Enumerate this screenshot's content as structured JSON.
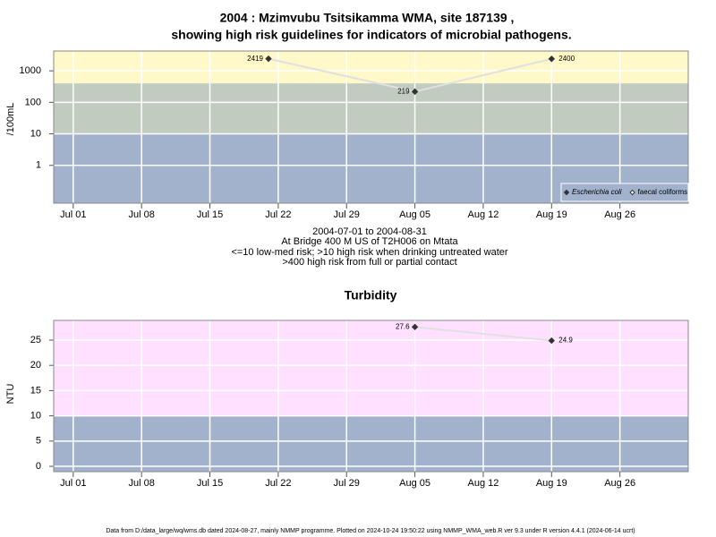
{
  "chart_data": [
    {
      "type": "line",
      "title": "2004 : Mzimvubu Tsitsikamma WMA, site 187139 ,",
      "subtitle": "showing high risk guidelines for indicators of microbial pathogens.",
      "ylabel": "/100mL",
      "log_scale": true,
      "ylim": [
        0.063,
        4260
      ],
      "yticks": [
        1,
        10,
        100,
        1000
      ],
      "xlim": [
        "2004-06-29",
        "2004-09-02"
      ],
      "xticks": [
        {
          "value": "2004-07-01",
          "label": "Jul 01"
        },
        {
          "value": "2004-07-08",
          "label": "Jul 08"
        },
        {
          "value": "2004-07-15",
          "label": "Jul 15"
        },
        {
          "value": "2004-07-22",
          "label": "Jul 22"
        },
        {
          "value": "2004-07-29",
          "label": "Jul 29"
        },
        {
          "value": "2004-08-05",
          "label": "Aug 05"
        },
        {
          "value": "2004-08-12",
          "label": "Aug 12"
        },
        {
          "value": "2004-08-19",
          "label": "Aug 19"
        },
        {
          "value": "2004-08-26",
          "label": "Aug 26"
        }
      ],
      "grid": true,
      "bands": [
        {
          "min": 400,
          "color": "#fff8c8"
        },
        {
          "min": 10,
          "max": 400,
          "color": "#c1cbc0"
        },
        {
          "max": 10,
          "color": "#a2b2cc"
        }
      ],
      "x": [
        "2004-07-21",
        "2004-08-05",
        "2004-08-19"
      ],
      "series": [
        {
          "name": "Escherichia coli",
          "color": "#333333",
          "values": [
            2419,
            219,
            2400
          ]
        },
        {
          "name": "faecal coliforms",
          "color": "#ffffff",
          "values": [
            null,
            null,
            null
          ]
        }
      ],
      "legend": "bottom right",
      "notes": [
        "2004-07-01 to 2004-08-31",
        "At Bridge 400 M US of T2H006 on Mtata",
        "<=10 low-med risk; >10 high risk when drinking untreated water",
        ">400 high risk from full or partial contact"
      ]
    },
    {
      "type": "line",
      "title": "Turbidity",
      "ylabel": "NTU",
      "log_scale": false,
      "ylim": [
        -1.06,
        28.9
      ],
      "yticks": [
        0,
        5,
        10,
        15,
        20,
        25
      ],
      "xlim": [
        "2004-06-29",
        "2004-09-02"
      ],
      "xticks": [
        {
          "value": "2004-07-01",
          "label": "Jul 01"
        },
        {
          "value": "2004-07-08",
          "label": "Jul 08"
        },
        {
          "value": "2004-07-15",
          "label": "Jul 15"
        },
        {
          "value": "2004-07-22",
          "label": "Jul 22"
        },
        {
          "value": "2004-07-29",
          "label": "Jul 29"
        },
        {
          "value": "2004-08-05",
          "label": "Aug 05"
        },
        {
          "value": "2004-08-12",
          "label": "Aug 12"
        },
        {
          "value": "2004-08-19",
          "label": "Aug 19"
        },
        {
          "value": "2004-08-26",
          "label": "Aug 26"
        }
      ],
      "grid": true,
      "bands": [
        {
          "min": 10,
          "color": "#ffe0ff"
        },
        {
          "max": 10,
          "color": "#a2b2cc"
        }
      ],
      "x": [
        "2004-08-05",
        "2004-08-19"
      ],
      "series": [
        {
          "color": "#333333",
          "values": [
            27.6,
            24.9
          ]
        }
      ]
    }
  ],
  "footer": "Data from D:/data_large/wq/wms.db dated 2024-08-27, mainly NMMP programme. Plotted on 2024-10-24 19:50:22 using NMMP_WMA_web.R ver 9.3 under R version 4.4.1 (2024-06-14 ucrt)"
}
